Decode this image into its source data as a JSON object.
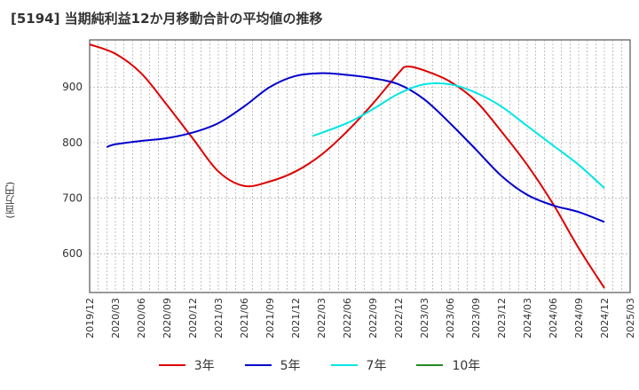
{
  "chart_data": {
    "type": "line",
    "title": "[5194]  当期純利益12か月移動合計の平均値の推移",
    "ylabel": "(百万円)",
    "xlabel": "",
    "ylim": [
      530,
      985
    ],
    "yticks": [
      600,
      700,
      800,
      900
    ],
    "xlim": [
      "2019/12",
      "2025/03"
    ],
    "xticks": [
      "2019/12",
      "2020/03",
      "2020/06",
      "2020/09",
      "2020/12",
      "2021/03",
      "2021/06",
      "2021/09",
      "2021/12",
      "2022/03",
      "2022/06",
      "2022/09",
      "2022/12",
      "2023/03",
      "2023/06",
      "2023/09",
      "2023/12",
      "2024/03",
      "2024/06",
      "2024/09",
      "2024/12",
      "2025/03"
    ],
    "grid": true,
    "legend_position": "bottom",
    "series": [
      {
        "name": "3年",
        "color": "#dd0000",
        "x": [
          "2019/12",
          "2020/03",
          "2020/06",
          "2020/09",
          "2020/12",
          "2021/03",
          "2021/06",
          "2021/09",
          "2021/12",
          "2022/03",
          "2022/06",
          "2022/09",
          "2022/12",
          "2023/01",
          "2023/03",
          "2023/06",
          "2023/09",
          "2023/12",
          "2024/03",
          "2024/06",
          "2024/09",
          "2024/12"
        ],
        "values": [
          977,
          960,
          925,
          868,
          808,
          748,
          722,
          730,
          748,
          778,
          820,
          870,
          925,
          937,
          930,
          910,
          875,
          820,
          760,
          690,
          610,
          538
        ]
      },
      {
        "name": "5年",
        "color": "#0000cc",
        "x": [
          "2020/02",
          "2020/03",
          "2020/06",
          "2020/09",
          "2020/12",
          "2021/03",
          "2021/06",
          "2021/09",
          "2021/12",
          "2022/03",
          "2022/06",
          "2022/09",
          "2022/12",
          "2023/03",
          "2023/06",
          "2023/09",
          "2023/12",
          "2024/03",
          "2024/06",
          "2024/09",
          "2024/12"
        ],
        "values": [
          792,
          797,
          803,
          808,
          818,
          835,
          865,
          900,
          920,
          925,
          922,
          916,
          905,
          878,
          835,
          788,
          740,
          706,
          687,
          675,
          657
        ]
      },
      {
        "name": "7年",
        "color": "#00e5e5",
        "x": [
          "2022/02",
          "2022/06",
          "2022/09",
          "2022/12",
          "2023/03",
          "2023/06",
          "2023/09",
          "2023/12",
          "2024/03",
          "2024/06",
          "2024/09",
          "2024/12"
        ],
        "values": [
          812,
          835,
          860,
          888,
          905,
          905,
          890,
          865,
          830,
          795,
          760,
          718
        ]
      },
      {
        "name": "10年",
        "color": "#228822",
        "x": [],
        "values": []
      }
    ]
  }
}
